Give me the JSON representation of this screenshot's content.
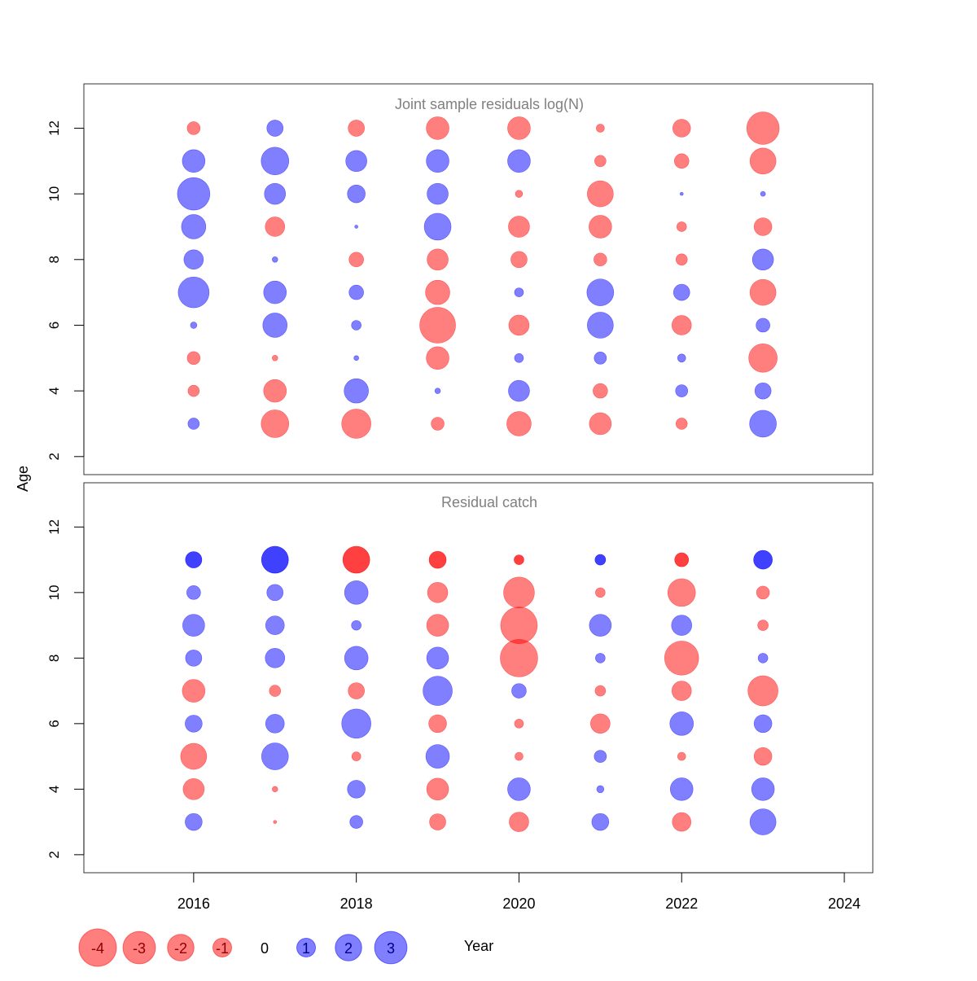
{
  "chart_data": {
    "type": "scatter",
    "subtype": "bubble",
    "ylabel": "Age",
    "xlabel": "Year",
    "xlim": [
      2014.65,
      2024.35
    ],
    "x_ticks": [
      2016,
      2018,
      2020,
      2022,
      2024
    ],
    "y_ticks": [
      2,
      4,
      6,
      8,
      10,
      12
    ],
    "ylim": [
      1.45,
      13.35
    ],
    "bubble_area_proportional_to": "abs(residual)",
    "colors": {
      "negative": "rgba(255,0,0,0.5)",
      "positive": "rgba(0,0,255,0.5)",
      "negative_dark": "rgba(255,0,0,0.75)",
      "positive_dark": "rgba(0,0,255,0.75)",
      "legend_negative_text": "#8b0000",
      "legend_positive_text": "#00008b",
      "title": "#808080"
    },
    "panels": [
      {
        "title": "Joint sample residuals log(N)",
        "years": [
          2016,
          2017,
          2018,
          2019,
          2020,
          2021,
          2022,
          2023
        ],
        "ages": [
          3,
          4,
          5,
          6,
          7,
          8,
          9,
          10,
          11,
          12
        ],
        "dark_ages": [],
        "values": [
          [
            0.37,
            -0.37,
            -0.48,
            0.12,
            2.73,
            1.09,
            1.7,
            3.02,
            1.48,
            -0.48
          ],
          [
            -2.19,
            -1.48,
            -0.09,
            1.7,
            1.48,
            0.09,
            -1.09,
            1.28,
            2.19,
            0.76
          ],
          [
            -2.45,
            1.7,
            0.07,
            0.27,
            0.61,
            -0.61,
            0.03,
            0.91,
            1.28,
            -0.76
          ],
          [
            -0.48,
            0.09,
            -1.48,
            -3.66,
            -1.7,
            -1.28,
            2.06,
            1.28,
            1.48,
            -1.48
          ],
          [
            -1.7,
            1.28,
            0.23,
            -1.18,
            0.23,
            -0.76,
            -1.28,
            -0.15,
            1.48,
            -1.48
          ],
          [
            -1.38,
            -0.61,
            0.43,
            1.94,
            2.06,
            -0.48,
            -1.48,
            -1.94,
            -0.37,
            -0.19
          ],
          [
            -0.37,
            0.43,
            0.19,
            -1.09,
            0.76,
            -0.37,
            -0.27,
            0.03,
            -0.61,
            -0.91
          ],
          [
            2.06,
            0.76,
            -2.32,
            0.55,
            -1.94,
            1.28,
            -0.91,
            0.07,
            -1.94,
            -3.02
          ]
        ]
      },
      {
        "title": "Residual catch",
        "years": [
          2016,
          2017,
          2018,
          2019,
          2020,
          2021,
          2022,
          2023
        ],
        "ages": [
          3,
          4,
          5,
          6,
          7,
          8,
          9,
          10,
          11
        ],
        "dark_ages": [
          11
        ],
        "values": [
          [
            0.83,
            -1.28,
            -1.94,
            0.83,
            -1.48,
            0.76,
            1.38,
            0.55,
            0.76
          ],
          [
            -0.03,
            -0.09,
            2.06,
            1.0,
            -0.37,
            1.09,
            1.0,
            0.76,
            2.06
          ],
          [
            0.48,
            0.91,
            -0.23,
            2.45,
            -0.76,
            1.59,
            0.27,
            1.59,
            -2.06
          ],
          [
            -0.76,
            -1.38,
            1.59,
            -0.91,
            2.45,
            1.38,
            -1.38,
            -1.18,
            -0.83
          ],
          [
            -1.09,
            1.48,
            -0.19,
            -0.23,
            0.61,
            -4.0,
            -3.83,
            -2.73,
            -0.27
          ],
          [
            0.83,
            0.15,
            0.43,
            -1.09,
            -0.32,
            0.27,
            1.38,
            -0.27,
            0.32
          ],
          [
            -1.0,
            1.48,
            -0.19,
            1.59,
            -1.09,
            -3.33,
            1.18,
            -2.19,
            -0.55
          ],
          [
            1.94,
            1.48,
            -0.91,
            0.91,
            -2.59,
            0.27,
            -0.32,
            -0.48,
            1.0
          ]
        ]
      }
    ],
    "legend": {
      "placement": "bottom-left",
      "entries": [
        "-4",
        "-3",
        "-2",
        "-1",
        "0",
        "1",
        "2",
        "3"
      ],
      "values": [
        -4,
        -3,
        -2,
        -1,
        0,
        1,
        2,
        3
      ]
    }
  }
}
